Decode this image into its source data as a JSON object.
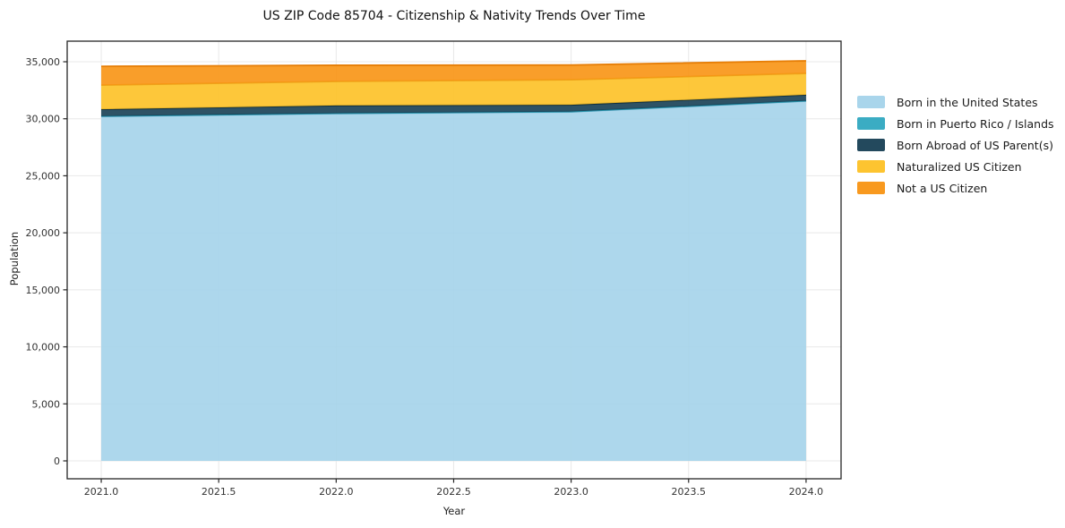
{
  "chart_data": {
    "type": "area",
    "stacked": true,
    "title": "US ZIP Code 85704 - Citizenship & Nativity Trends Over Time",
    "xlabel": "Year",
    "ylabel": "Population",
    "x": [
      2021,
      2022,
      2023,
      2024
    ],
    "series": [
      {
        "name": "Born in the United States",
        "slug": "born-in-us",
        "color": "#a4d3ea",
        "edge": "#8abedd",
        "values": [
          30200,
          30450,
          30600,
          31550
        ]
      },
      {
        "name": "Born in Puerto Rico / Islands",
        "slug": "born-pr-islands",
        "color": "#30a8c0",
        "edge": "#2391a8",
        "values": [
          30,
          30,
          30,
          30
        ]
      },
      {
        "name": "Born Abroad of US Parent(s)",
        "slug": "born-abroad",
        "color": "#173f54",
        "edge": "#102f3f",
        "values": [
          600,
          680,
          590,
          520
        ]
      },
      {
        "name": "Naturalized US Citizen",
        "slug": "naturalized",
        "color": "#fdc125",
        "edge": "#eda41b",
        "values": [
          2120,
          2120,
          2200,
          1880
        ]
      },
      {
        "name": "Not a US Citizen",
        "slug": "not-citizen",
        "color": "#f89313",
        "edge": "#e67e07",
        "values": [
          1650,
          1410,
          1290,
          1100
        ]
      }
    ],
    "xlim": [
      2020.855,
      2024.149
    ],
    "ylim": [
      -1570,
      36805
    ],
    "xticks": {
      "values": [
        2021.0,
        2021.5,
        2022.0,
        2022.5,
        2023.0,
        2023.5,
        2024.0
      ],
      "labels": [
        "2021.0",
        "2021.5",
        "2022.0",
        "2022.5",
        "2023.0",
        "2023.5",
        "2024.0"
      ]
    },
    "yticks": {
      "values": [
        0,
        5000,
        10000,
        15000,
        20000,
        25000,
        30000,
        35000
      ],
      "labels": [
        "0",
        "5,000",
        "10,000",
        "15,000",
        "20,000",
        "25,000",
        "30,000",
        "35,000"
      ]
    },
    "grid": true,
    "legend_position": "right",
    "colors": {
      "grid": "#e8e8e8",
      "spine": "#262626",
      "tick_label": "#333333",
      "background": "#ffffff"
    }
  }
}
